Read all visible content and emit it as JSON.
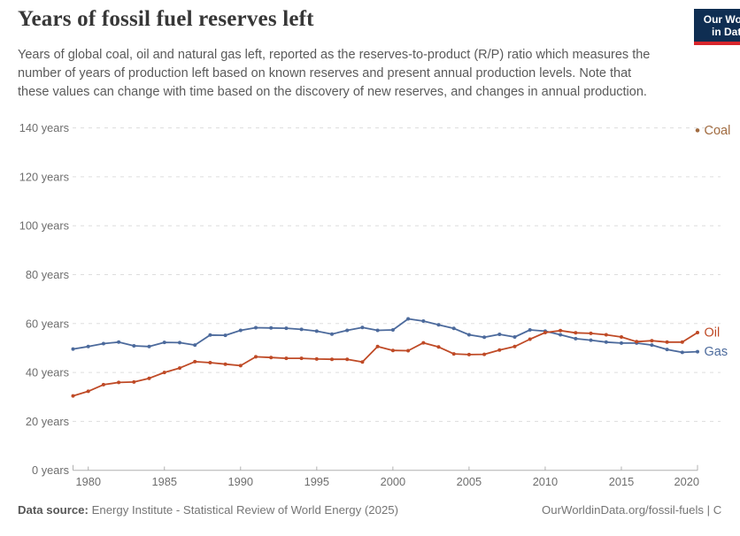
{
  "header": {
    "logo": {
      "line1": "Our World",
      "line2": "in Data"
    }
  },
  "chart_data": {
    "type": "line",
    "title": "Years of fossil fuel reserves left",
    "subtitle": "Years of global coal, oil and natural gas left, reported as the reserves-to-product (R/P) ratio which measures the number of years of production left based on known reserves and present annual production levels. Note that these values can change with time based on the discovery of new reserves, and changes in annual production.",
    "xlabel": "",
    "ylabel": "",
    "ytick_suffix": " years",
    "xlim": [
      1979,
      2020
    ],
    "ylim": [
      0,
      140
    ],
    "yticks": [
      0,
      20,
      40,
      60,
      80,
      100,
      120,
      140
    ],
    "xticks": [
      1980,
      1985,
      1990,
      1995,
      2000,
      2005,
      2010,
      2015,
      2020
    ],
    "grid": "horizontal-dashed",
    "legend_position": "end-of-line-labels",
    "x": [
      1979,
      1980,
      1981,
      1982,
      1983,
      1984,
      1985,
      1986,
      1987,
      1988,
      1989,
      1990,
      1991,
      1992,
      1993,
      1994,
      1995,
      1996,
      1997,
      1998,
      1999,
      2000,
      2001,
      2002,
      2003,
      2004,
      2005,
      2006,
      2007,
      2008,
      2009,
      2010,
      2011,
      2012,
      2013,
      2014,
      2015,
      2016,
      2017,
      2018,
      2019,
      2020
    ],
    "series": [
      {
        "name": "Gas",
        "color": "#4c6a9c",
        "values": [
          49.6,
          50.6,
          51.8,
          52.4,
          50.9,
          50.6,
          52.3,
          52.2,
          51.2,
          55.3,
          55.2,
          57.2,
          58.3,
          58.2,
          58.1,
          57.6,
          56.9,
          55.7,
          57.2,
          58.4,
          57.2,
          57.4,
          61.9,
          61.0,
          59.5,
          58.0,
          55.4,
          54.4,
          55.6,
          54.5,
          57.4,
          56.9,
          55.4,
          53.8,
          53.2,
          52.4,
          52.0,
          52.0,
          51.2,
          49.4,
          48.2,
          48.5
        ]
      },
      {
        "name": "Oil",
        "color": "#bf4a26",
        "values": [
          30.4,
          32.3,
          35.0,
          35.9,
          36.1,
          37.6,
          40.0,
          41.8,
          44.4,
          44.0,
          43.4,
          42.8,
          46.4,
          46.1,
          45.8,
          45.8,
          45.5,
          45.4,
          45.4,
          44.3,
          50.6,
          49.0,
          48.9,
          52.1,
          50.4,
          47.6,
          47.3,
          47.4,
          49.2,
          50.6,
          53.6,
          56.3,
          57.1,
          56.2,
          56.0,
          55.4,
          54.5,
          52.6,
          53.0,
          52.4,
          52.4,
          56.3
        ]
      },
      {
        "name": "Coal",
        "color": "#a16b40",
        "points": [
          [
            2020,
            139
          ]
        ]
      }
    ]
  },
  "footer": {
    "source_label": "Data source:",
    "source_text": "Energy Institute - Statistical Review of World Energy (2025)",
    "link_text": "OurWorldinData.org/fossil-fuels | C"
  }
}
